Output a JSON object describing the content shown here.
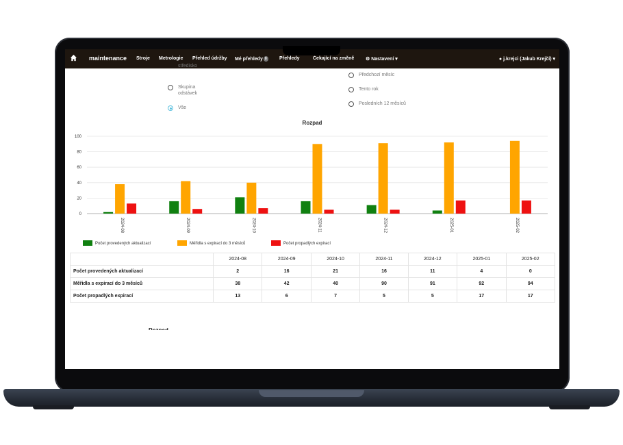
{
  "navbar": {
    "brand": "maintenance",
    "items": [
      "Stroje",
      "Metrologie",
      "Přehled údržby",
      "Mé přehledy",
      "Přehledy",
      "Čekající na změně"
    ],
    "my_reports_badge": "0",
    "settings": "Nastavení",
    "user": "j.krejci (Jakub Krejčí)"
  },
  "filters": {
    "left": [
      {
        "label": "středisko",
        "checked": false
      },
      {
        "label": "Skupina odstávek",
        "checked": false
      },
      {
        "label": "Vše",
        "checked": true
      }
    ],
    "right": [
      {
        "label": "Předchozí měsíc",
        "checked": false
      },
      {
        "label": "Tento rok",
        "checked": false
      },
      {
        "label": "Posledních 12 měsíců",
        "checked": false
      }
    ]
  },
  "chart_data": {
    "type": "bar",
    "title": "Rozpad",
    "categories": [
      "2024-08",
      "2024-09",
      "2024-10",
      "2024-11",
      "2024-12",
      "2025-01",
      "2025-02"
    ],
    "series": [
      {
        "name": "Počet provedených aktualizací",
        "color": "#108010",
        "values": [
          2,
          16,
          21,
          16,
          11,
          4,
          0
        ]
      },
      {
        "name": "Měřidla s expirací do 3 měsíců",
        "color": "#ffa500",
        "values": [
          38,
          42,
          40,
          90,
          91,
          92,
          94
        ]
      },
      {
        "name": "Počet propadlých expirací",
        "color": "#ee1111",
        "values": [
          13,
          6,
          7,
          5,
          5,
          17,
          17
        ]
      }
    ],
    "ylim": [
      0,
      100
    ],
    "yticks": [
      0,
      20,
      40,
      60,
      80,
      100
    ],
    "grid": true,
    "legend": "bottom"
  },
  "table": {
    "headers": [
      "",
      "2024-08",
      "2024-09",
      "2024-10",
      "2024-11",
      "2024-12",
      "2025-01",
      "2025-02"
    ],
    "rows": [
      {
        "label": "Počet provedených aktualizací",
        "values": [
          "2",
          "16",
          "21",
          "16",
          "11",
          "4",
          "0"
        ]
      },
      {
        "label": "Měřidla s expirací do 3 měsíců",
        "values": [
          "38",
          "42",
          "40",
          "90",
          "91",
          "92",
          "94"
        ]
      },
      {
        "label": "Počet propadlých expirací",
        "values": [
          "13",
          "6",
          "7",
          "5",
          "5",
          "17",
          "17"
        ]
      }
    ]
  },
  "second_title": "Rozpad"
}
